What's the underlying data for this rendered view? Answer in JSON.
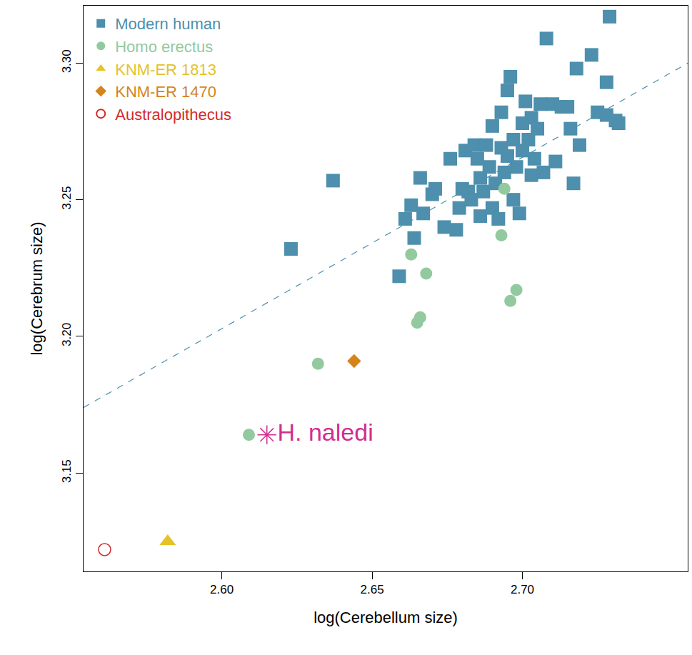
{
  "chart_data": {
    "type": "scatter",
    "x_label": "log(Cerebellum size)",
    "y_label": "log(Cerebrum size)",
    "xlim": [
      2.554,
      2.755
    ],
    "ylim": [
      3.114,
      3.321
    ],
    "xticks": [
      {
        "value": 2.6,
        "label": "2.60"
      },
      2.65,
      {
        "value": 2.7,
        "label": "2.70"
      }
    ],
    "yticks": [
      3.15,
      {
        "value": 3.2,
        "label": "3.20"
      },
      3.25,
      {
        "value": 3.3,
        "label": "3.30"
      }
    ],
    "grid": false,
    "legend": "top-left",
    "series": [
      {
        "name": "Modern human",
        "color": "#4d8fac",
        "marker": "square",
        "x": [
          2.623,
          2.637,
          2.659,
          2.661,
          2.663,
          2.664,
          2.666,
          2.667,
          2.67,
          2.671,
          2.674,
          2.676,
          2.678,
          2.679,
          2.68,
          2.681,
          2.682,
          2.683,
          2.684,
          2.685,
          2.686,
          2.686,
          2.687,
          2.688,
          2.689,
          2.69,
          2.69,
          2.691,
          2.692,
          2.693,
          2.693,
          2.694,
          2.695,
          2.695,
          2.696,
          2.697,
          2.697,
          2.698,
          2.699,
          2.7,
          2.7,
          2.701,
          2.702,
          2.703,
          2.703,
          2.704,
          2.705,
          2.706,
          2.707,
          2.708,
          2.71,
          2.711,
          2.713,
          2.715,
          2.716,
          2.717,
          2.718,
          2.719,
          2.723,
          2.725,
          2.728,
          2.728,
          2.729,
          2.731,
          2.732
        ],
        "y": [
          3.232,
          3.257,
          3.222,
          3.243,
          3.248,
          3.236,
          3.258,
          3.245,
          3.252,
          3.254,
          3.24,
          3.265,
          3.239,
          3.247,
          3.254,
          3.268,
          3.253,
          3.25,
          3.27,
          3.265,
          3.258,
          3.244,
          3.253,
          3.27,
          3.262,
          3.277,
          3.247,
          3.256,
          3.243,
          3.269,
          3.282,
          3.26,
          3.29,
          3.266,
          3.295,
          3.25,
          3.272,
          3.262,
          3.245,
          3.268,
          3.278,
          3.286,
          3.272,
          3.259,
          3.28,
          3.265,
          3.276,
          3.285,
          3.26,
          3.309,
          3.285,
          3.264,
          3.284,
          3.284,
          3.276,
          3.256,
          3.298,
          3.27,
          3.303,
          3.282,
          3.293,
          3.281,
          3.317,
          3.279,
          3.278
        ]
      },
      {
        "name": "Homo erectus",
        "color": "#93c99f",
        "marker": "circle",
        "x": [
          2.609,
          2.632,
          2.663,
          2.665,
          2.666,
          2.668,
          2.693,
          2.694,
          2.696,
          2.698
        ],
        "y": [
          3.164,
          3.19,
          3.23,
          3.205,
          3.207,
          3.223,
          3.237,
          3.254,
          3.213,
          3.217
        ]
      },
      {
        "name": "KNM-ER 1813",
        "color": "#e6c229",
        "marker": "triangle-up",
        "x": [
          2.582
        ],
        "y": [
          3.125
        ]
      },
      {
        "name": "KNM-ER 1470",
        "color": "#d4841c",
        "marker": "diamond",
        "x": [
          2.644
        ],
        "y": [
          3.191
        ]
      },
      {
        "name": "Australopithecus",
        "color": "#d42a2a",
        "marker": "circle-open",
        "x": [
          2.561
        ],
        "y": [
          3.122
        ]
      }
    ],
    "highlight": {
      "label": "H. naledi",
      "x": 2.615,
      "y": 3.164,
      "color": "#d12f8f",
      "marker": "asterisk-open"
    },
    "trend_line": {
      "x": [
        2.554,
        2.755
      ],
      "y": [
        3.174,
        3.3
      ],
      "color": "#4d8fac",
      "line_style": "dash"
    }
  }
}
